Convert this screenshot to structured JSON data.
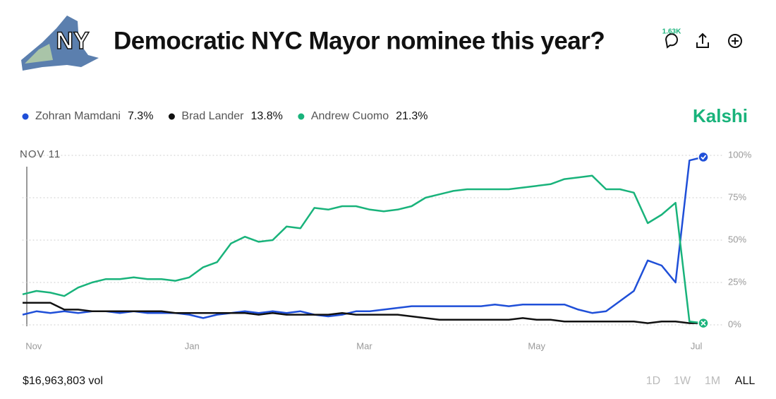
{
  "header": {
    "logo_text": "NY",
    "title": "Democratic NYC Mayor nominee this year?",
    "comments": "1.63K"
  },
  "brand": "Kalshi",
  "hover_label": "NOV 11",
  "volume": "$16,963,803 vol",
  "ranges": [
    "1D",
    "1W",
    "1M",
    "ALL"
  ],
  "chart_data": {
    "type": "line",
    "xlim": [
      0,
      49
    ],
    "xticks": [
      {
        "value": 0.8,
        "label": "Nov"
      },
      {
        "value": 12.2,
        "label": "Jan"
      },
      {
        "value": 24.6,
        "label": "Mar"
      },
      {
        "value": 37,
        "label": "May"
      },
      {
        "value": 48.5,
        "label": "Jul"
      }
    ],
    "ylim": [
      0,
      100
    ],
    "yticks": [
      {
        "value": 0,
        "label": "0%"
      },
      {
        "value": 25,
        "label": "25%"
      },
      {
        "value": 50,
        "label": "50%"
      },
      {
        "value": 75,
        "label": "75%"
      },
      {
        "value": 100,
        "label": "100%"
      }
    ],
    "grid": true,
    "series": [
      {
        "name": "Zohran Mamdani",
        "current_label": "7.3%",
        "color": "#1f4fd8",
        "values": [
          6,
          8,
          7,
          8,
          7,
          8,
          8,
          7,
          8,
          7,
          7,
          7,
          6,
          4,
          6,
          7,
          8,
          7,
          8,
          7,
          8,
          6,
          5,
          6,
          8,
          8,
          9,
          10,
          11,
          11,
          11,
          11,
          11,
          11,
          12,
          11,
          12,
          12,
          12,
          12,
          9,
          7,
          8,
          14,
          20,
          38,
          35,
          25,
          97,
          99
        ]
      },
      {
        "name": "Brad Lander",
        "current_label": "13.8%",
        "color": "#111111",
        "values": [
          13,
          13,
          13,
          9,
          9,
          8,
          8,
          8,
          8,
          8,
          8,
          7,
          7,
          7,
          7,
          7,
          7,
          6,
          7,
          6,
          6,
          6,
          6,
          7,
          6,
          6,
          6,
          6,
          5,
          4,
          3,
          3,
          3,
          3,
          3,
          3,
          4,
          3,
          3,
          2,
          2,
          2,
          2,
          2,
          2,
          1,
          2,
          2,
          1,
          1
        ]
      },
      {
        "name": "Andrew Cuomo",
        "current_label": "21.3%",
        "color": "#19b37b",
        "values": [
          18,
          20,
          19,
          17,
          22,
          25,
          27,
          27,
          28,
          27,
          27,
          26,
          28,
          34,
          37,
          48,
          52,
          49,
          50,
          58,
          57,
          69,
          68,
          70,
          70,
          68,
          67,
          68,
          70,
          75,
          77,
          79,
          80,
          80,
          80,
          80,
          81,
          82,
          83,
          86,
          87,
          88,
          80,
          80,
          78,
          60,
          65,
          72,
          2,
          1
        ]
      }
    ]
  }
}
